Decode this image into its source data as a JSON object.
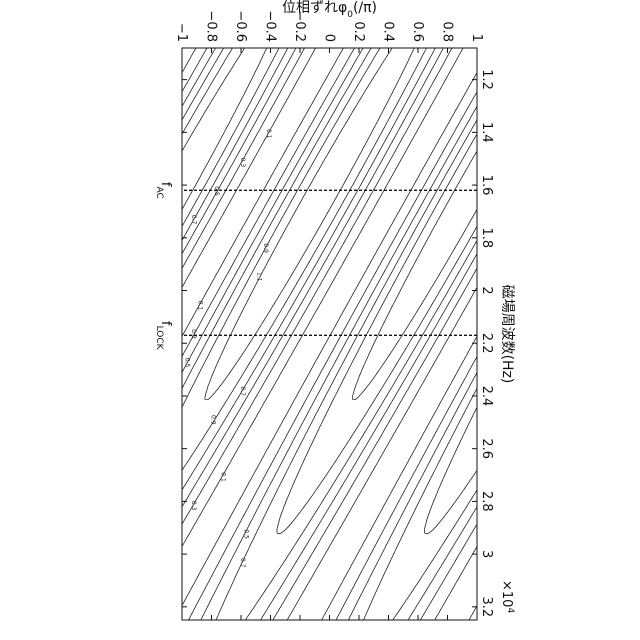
{
  "chart_data": {
    "type": "contour",
    "xlabel": "磁場周波数(Hz)",
    "ylabel": "位相ずれφ0(/π)",
    "ylabel_parts": {
      "main": "位相ずれ",
      "phi": "φ",
      "sub": "0",
      "tail": "(/π)"
    },
    "x_exponent_label": "×10",
    "x_exponent": "4",
    "xlim": [
      10800,
      32500
    ],
    "ylim": [
      -1,
      1
    ],
    "x_ticks": [
      12000,
      14000,
      16000,
      18000,
      20000,
      22000,
      24000,
      26000,
      28000,
      30000,
      32000
    ],
    "x_tick_labels": [
      "1.2",
      "1.4",
      "1.6",
      "1.8",
      "2",
      "2.2",
      "2.4",
      "2.6",
      "2.8",
      "3",
      "3.2"
    ],
    "y_ticks": [
      -1,
      -0.8,
      -0.6,
      -0.4,
      -0.2,
      0,
      0.2,
      0.4,
      0.6,
      0.8,
      1
    ],
    "y_tick_labels": [
      "−1",
      "−0.8",
      "−0.6",
      "−0.4",
      "−0.2",
      "0",
      "0.2",
      "0.4",
      "0.6",
      "0.8",
      "1"
    ],
    "contour_levels": [
      0.1,
      0.3,
      0.5,
      0.7,
      0.9,
      1.1
    ],
    "contour_level_labels": [
      "0.1",
      "0.3",
      "0.5",
      "0.7",
      "0.9",
      "1.1"
    ],
    "peak_value": 1.25,
    "peak_ridge": {
      "x_at_y_neg1": 10800,
      "x_per_unit_phase": -10000,
      "phase_period": 1
    },
    "x_falloff": {
      "center": 16500,
      "width": 17000
    },
    "markers": [
      {
        "name": "fAC",
        "text": "f",
        "sub": "AC",
        "x": 16200
      },
      {
        "name": "fLOCK",
        "text": "f",
        "sub": "LOCK",
        "x": 21700
      }
    ]
  }
}
